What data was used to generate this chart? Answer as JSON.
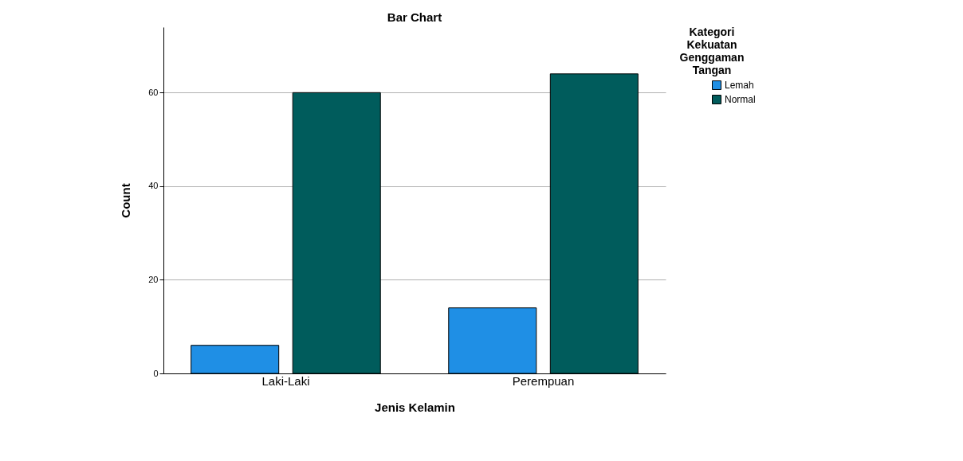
{
  "chart_data": {
    "type": "bar",
    "title": "Bar Chart",
    "xlabel": "Jenis Kelamin",
    "ylabel": "Count",
    "legend_title": "Kategori Kekuatan Genggaman Tangan",
    "categories": [
      "Laki-Laki",
      "Perempuan"
    ],
    "series": [
      {
        "name": "Lemah",
        "color": "#1f8fe5",
        "values": [
          6,
          14
        ]
      },
      {
        "name": "Normal",
        "color": "#005c5c",
        "values": [
          60,
          64
        ]
      }
    ],
    "ylim": [
      0,
      74
    ],
    "yticks": [
      0,
      20,
      40,
      60
    ],
    "grid": "y",
    "legend": "right"
  }
}
